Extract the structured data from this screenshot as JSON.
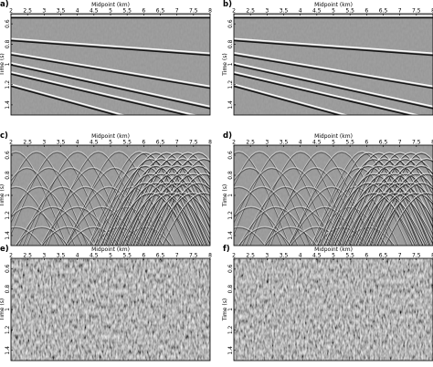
{
  "figure": {
    "x_axis": {
      "label": "Midpoint (km)",
      "ticks": [
        "2",
        "2.5",
        "3",
        "3.5",
        "4",
        "4.5",
        "5",
        "5.5",
        "6",
        "6.5",
        "7",
        "7.5",
        "8"
      ],
      "range": [
        2,
        8
      ]
    },
    "y_axis": {
      "label": "Time (s)",
      "ticks": [
        "0.6",
        "0.8",
        "1",
        "1.2",
        "1.4"
      ],
      "range": [
        0.5,
        1.5
      ]
    },
    "panels": [
      {
        "id": "a",
        "label": "a)",
        "content": "reflections"
      },
      {
        "id": "b",
        "label": "b)",
        "content": "reflections"
      },
      {
        "id": "c",
        "label": "c)",
        "content": "diffractions"
      },
      {
        "id": "d",
        "label": "d)",
        "content": "diffractions"
      },
      {
        "id": "e",
        "label": "e)",
        "content": "noise"
      },
      {
        "id": "f",
        "label": "f)",
        "content": "noise"
      }
    ],
    "reflectors": [
      {
        "t_at_2km": 0.535,
        "t_at_8km": 0.535
      },
      {
        "t_at_2km": 0.76,
        "t_at_8km": 0.905
      },
      {
        "t_at_2km": 0.9,
        "t_at_8km": 1.23
      },
      {
        "t_at_2km": 1.0,
        "t_at_8km": 1.43
      },
      {
        "t_at_2km": 1.09,
        "t_at_8km": 1.55
      },
      {
        "t_at_2km": 1.21,
        "t_at_8km": 1.75
      }
    ]
  }
}
